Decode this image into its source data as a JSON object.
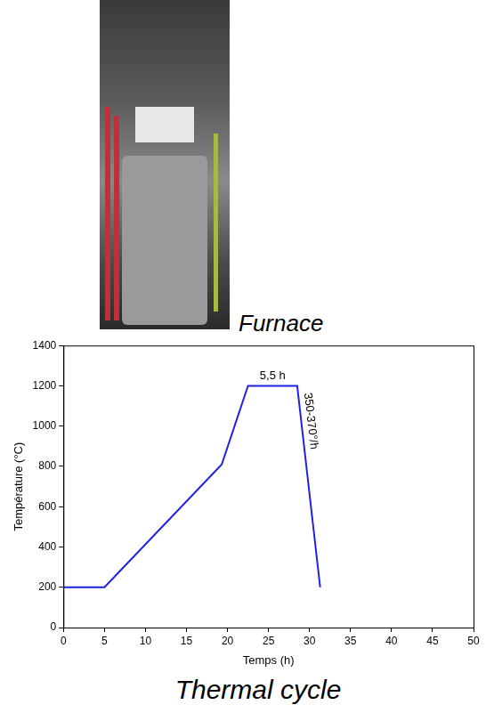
{
  "captions": {
    "photo": "Furnace",
    "figure": "Thermal cycle"
  },
  "chart_data": {
    "type": "line",
    "x_label": "Temps (h)",
    "y_label": "Température (°C)",
    "x": [
      0,
      5,
      19.3,
      22.5,
      28.5,
      31.3
    ],
    "values": [
      200,
      200,
      810,
      1200,
      1200,
      200
    ],
    "color": "#1f1fe6",
    "xlim": [
      0,
      50
    ],
    "xticks": [
      0,
      5,
      10,
      15,
      20,
      25,
      30,
      35,
      40,
      45,
      50
    ],
    "ylim": [
      0,
      1400
    ],
    "yticks": [
      0,
      200,
      400,
      600,
      800,
      1000,
      1200,
      1400
    ],
    "grid": false,
    "annotations": [
      {
        "text": "5,5 h"
      },
      {
        "text": "350-370°/h"
      }
    ]
  }
}
